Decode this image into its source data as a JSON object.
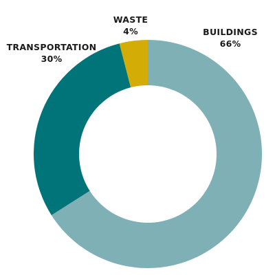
{
  "chart_data": {
    "type": "pie",
    "subtype": "donut",
    "slices": [
      {
        "label": "BUILDINGS",
        "value": 66,
        "value_label": "66%",
        "color": "#7fb0b6"
      },
      {
        "label": "TRANSPORTATION",
        "value": 30,
        "value_label": "30%",
        "color": "#007479"
      },
      {
        "label": "WASTE",
        "value": 4,
        "value_label": "4%",
        "color": "#d4ac06"
      }
    ],
    "start_angle_deg": 0,
    "direction": "clockwise",
    "legend": "none",
    "labels_position": "outside"
  }
}
